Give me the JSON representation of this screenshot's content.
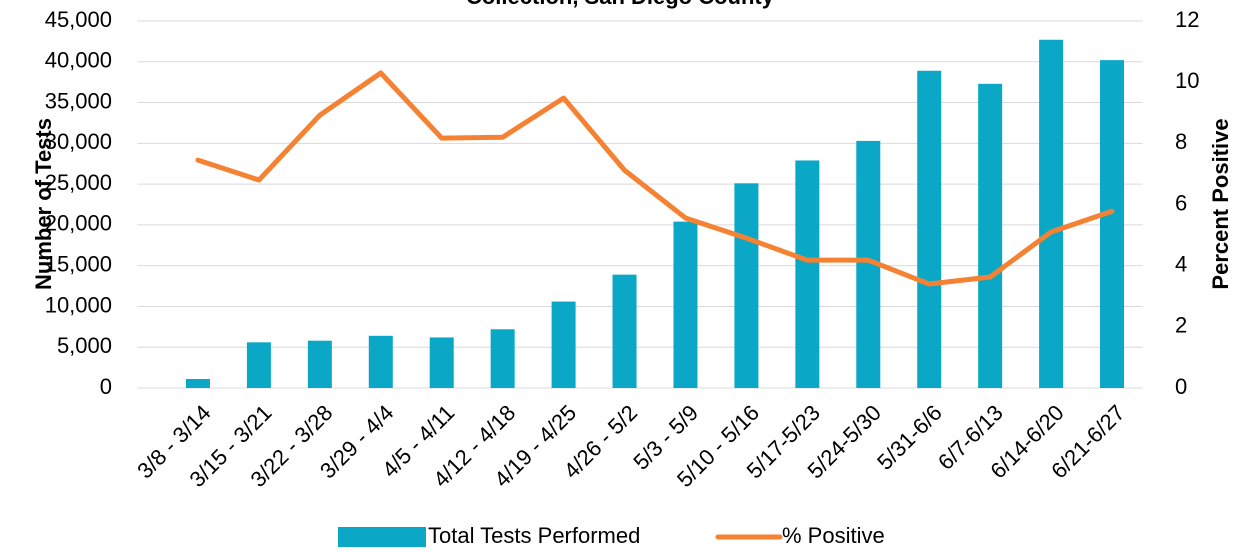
{
  "chart_data": {
    "type": "bar+line",
    "title": "Collection, San Diego County",
    "categories": [
      "3/8 - 3/14",
      "3/15 - 3/21",
      "3/22 - 3/28",
      "3/29 - 4/4",
      "4/5 - 4/11",
      "4/12 - 4/18",
      "4/19 - 4/25",
      "4/26 - 5/2",
      "5/3 - 5/9",
      "5/10 - 5/16",
      "5/17-5/23",
      "5/24-5/30",
      "5/31-6/6",
      "6/7-6/13",
      "6/14-6/20",
      "6/21-6/27"
    ],
    "series": [
      {
        "name": "Total Tests Performed",
        "type": "bar",
        "color": "#0aa8c6",
        "axis": "y",
        "values": [
          1100,
          5600,
          5800,
          6400,
          6200,
          7200,
          10600,
          13900,
          20400,
          25100,
          27900,
          30300,
          38900,
          37300,
          42700,
          40200
        ]
      },
      {
        "name": "% Positive",
        "type": "line",
        "color": "#f58232",
        "axis": "y2",
        "values": [
          7.45,
          6.8,
          8.92,
          10.3,
          8.17,
          8.2,
          9.48,
          7.12,
          5.56,
          4.9,
          4.18,
          4.18,
          3.4,
          3.63,
          5.1,
          5.78
        ]
      }
    ],
    "ylabel": "Number of Tests",
    "y2label": "Percent Positive",
    "ylim": [
      0,
      45000
    ],
    "yticks": [
      0,
      {
        "value": 5000,
        "label": "5,000"
      },
      {
        "value": 10000,
        "label": "10,000"
      },
      {
        "value": 15000,
        "label": "15,000"
      },
      {
        "value": 20000,
        "label": "20,000"
      },
      {
        "value": 25000,
        "label": "25,000"
      },
      {
        "value": 30000,
        "label": "30,000"
      },
      {
        "value": 35000,
        "label": "35,000"
      },
      {
        "value": 40000,
        "label": "40,000"
      },
      {
        "value": 45000,
        "label": "45,000"
      }
    ],
    "y2lim": [
      0,
      12
    ],
    "y2ticks": [
      0,
      2,
      4,
      6,
      8,
      10,
      12
    ],
    "grid": true,
    "legend": "bottom"
  }
}
